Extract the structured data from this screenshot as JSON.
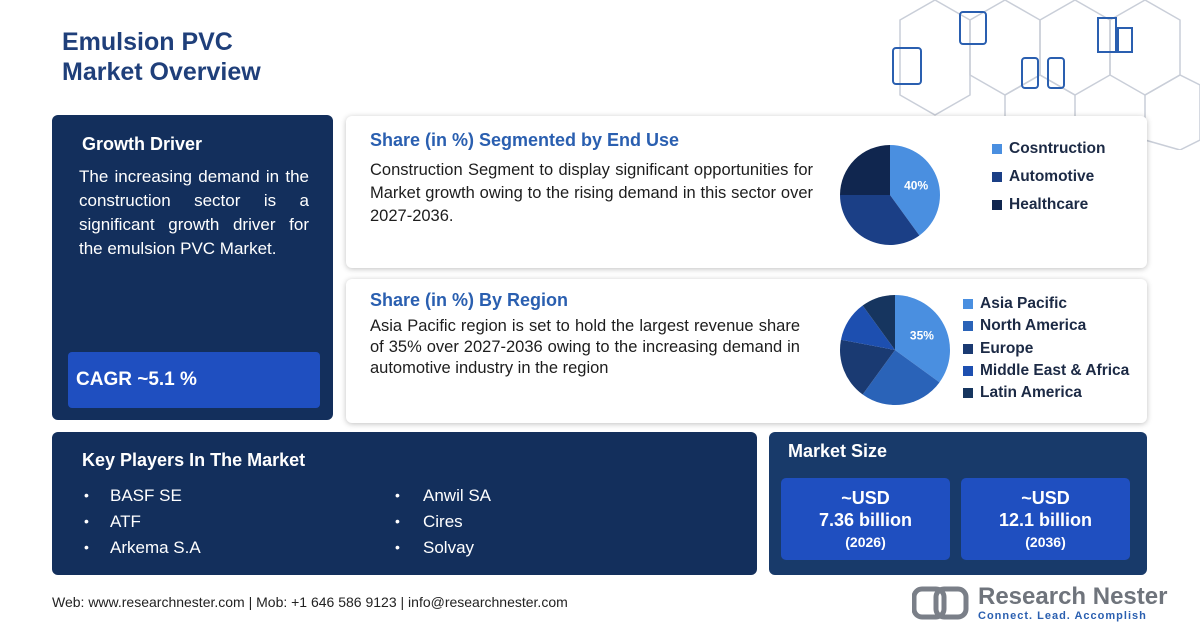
{
  "header": {
    "title_line1": "Emulsion PVC",
    "title_line2": "Market Overview"
  },
  "growth_driver": {
    "title": "Growth Driver",
    "text": "The increasing demand in the construction sector is a significant growth driver for the emulsion PVC Market.",
    "cagr": "CAGR ~5.1 %"
  },
  "end_use": {
    "title": "Share (in %) Segmented by End Use",
    "text": "Construction Segment to display significant opportunities for Market growth owing to the rising demand in this sector over 2027-2036.",
    "chart_data": {
      "type": "pie",
      "categories": [
        "Cosntruction",
        "Automotive",
        "Healthcare"
      ],
      "values": [
        40,
        35,
        25
      ],
      "value_labels": [
        "40%",
        null,
        null
      ],
      "colors": [
        "#4a8fe0",
        "#1b3f86",
        "#10264f"
      ]
    }
  },
  "region": {
    "title": "Share (in %) By Region",
    "text": "Asia Pacific region  is set to hold the largest revenue share of 35% over 2027-2036 owing to the increasing demand in automotive industry in the region",
    "chart_data": {
      "type": "pie",
      "categories": [
        "Asia Pacific",
        "North America",
        "Europe",
        "Middle East & Africa",
        "Latin America"
      ],
      "values": [
        35,
        25,
        18,
        12,
        10
      ],
      "value_labels": [
        "35%",
        null,
        null,
        null,
        null
      ],
      "colors": [
        "#4a8fe0",
        "#2a63b8",
        "#1a3a72",
        "#1d4fb0",
        "#16355f"
      ]
    }
  },
  "key_players": {
    "title": "Key Players In The Market",
    "players": [
      "BASF SE",
      "ATF",
      "Arkema S.A",
      "Anwil SA",
      "Cires",
      "Solvay"
    ]
  },
  "market_size": {
    "title": "Market Size",
    "items": [
      {
        "prefix": "~USD",
        "value": "7.36 billion",
        "year": "(2026)"
      },
      {
        "prefix": "~USD",
        "value": "12.1 billion",
        "year": "(2036)"
      }
    ]
  },
  "footer": {
    "contact": "Web: www.researchnester.com | Mob: +1 646 586 9123 | info@researchnester.com"
  },
  "logo": {
    "name": "Research Nester",
    "tagline": "Connect. Lead. Accomplish"
  }
}
